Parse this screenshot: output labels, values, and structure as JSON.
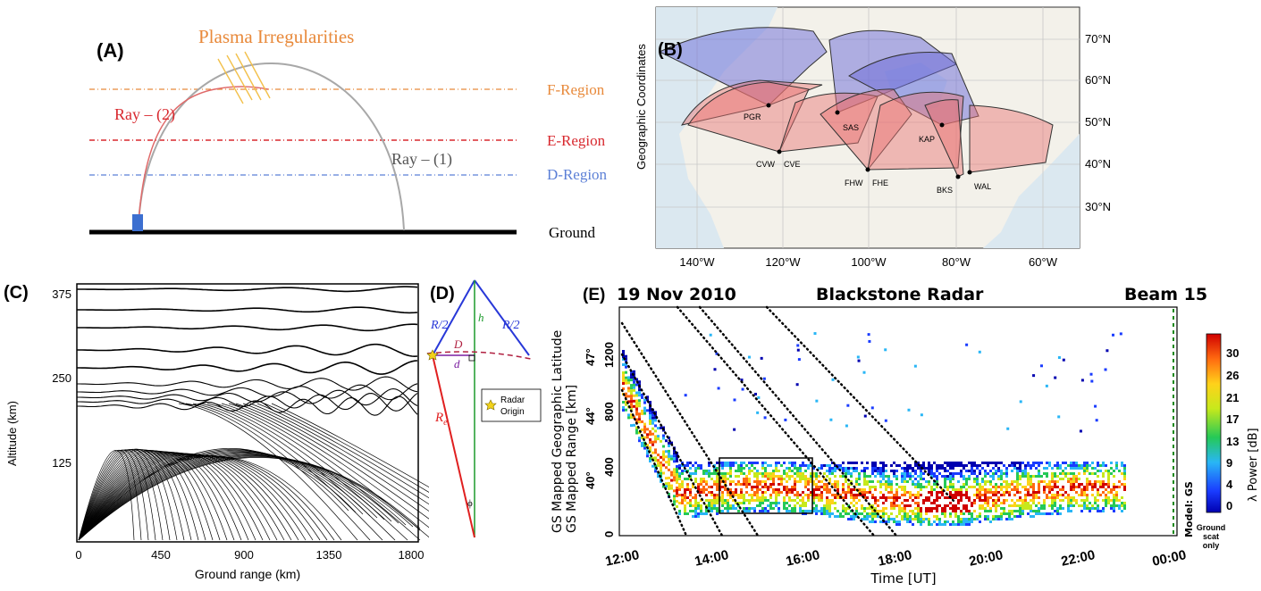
{
  "panelA": {
    "label": "(A)",
    "irregularities": "Plasma Irregularities",
    "ray2": "Ray – (2)",
    "ray1": "Ray – (1)",
    "fRegion": "F-Region",
    "eRegion": "E-Region",
    "dRegion": "D-Region",
    "ground": "Ground",
    "colors": {
      "f": "#e8893a",
      "e": "#d8282e",
      "d": "#5b7fd6",
      "ray2": "#e06a6a",
      "ray1": "#a8a8a8",
      "irreg": "#f2c04a",
      "antenna": "#3c6fd0"
    }
  },
  "panelB": {
    "label": "(B)",
    "ylabel": "Geographic Coordinates",
    "lat_ticks": [
      "70°N",
      "60°N",
      "50°N",
      "40°N",
      "30°N"
    ],
    "lon_ticks": [
      "140°W",
      "120°W",
      "100°W",
      "80°W",
      "60°W"
    ],
    "stations": [
      "PGR",
      "SAS",
      "KAP",
      "CVW",
      "CVE",
      "FHW",
      "FHE",
      "BKS",
      "WAL"
    ],
    "colors": {
      "blue": "#6a6ad8",
      "red": "#e87070",
      "land": "#f3f1ea",
      "water": "#dbe8f0"
    }
  },
  "panelC": {
    "label": "(C)",
    "ylabel": "Altitude (km)",
    "xlabel": "Ground range (km)",
    "y_ticks": [
      "375",
      "250",
      "125"
    ],
    "x_ticks": [
      "0",
      "450",
      "900",
      "1350",
      "1800"
    ]
  },
  "panelD": {
    "label": "(D)",
    "r_half_left": "R/2",
    "r_half_right": "R/2",
    "h": "h",
    "D": "D",
    "d": "d",
    "Re": "R",
    "Re_sub": "e",
    "phi": "ϕ",
    "legend_line1": "Radar",
    "legend_line2": "Origin"
  },
  "panelE": {
    "label": "(E)",
    "date": "19 Nov 2010",
    "radar": "Blackstone Radar",
    "beam": "Beam 15",
    "ylabel1": "GS Mapped Geographic Latitude",
    "ylabel2": "GS Mapped Range [km]",
    "xlabel": "Time [UT]",
    "range_ticks": [
      "1200",
      "800",
      "400",
      "0"
    ],
    "lat_ticks": [
      "47°",
      "44°",
      "40°"
    ],
    "time_ticks": [
      "12:00",
      "14:00",
      "16:00",
      "18:00",
      "20:00",
      "22:00",
      "00:00"
    ],
    "model": "Model: GS",
    "ground_scat": "Ground scat only",
    "ground_scat_lines": [
      "Ground",
      "scat",
      "only"
    ],
    "colorbar_label": "λ Power [dB]",
    "colorbar_ticks": [
      "30",
      "26",
      "21",
      "17",
      "13",
      "9",
      "4",
      "0"
    ]
  }
}
